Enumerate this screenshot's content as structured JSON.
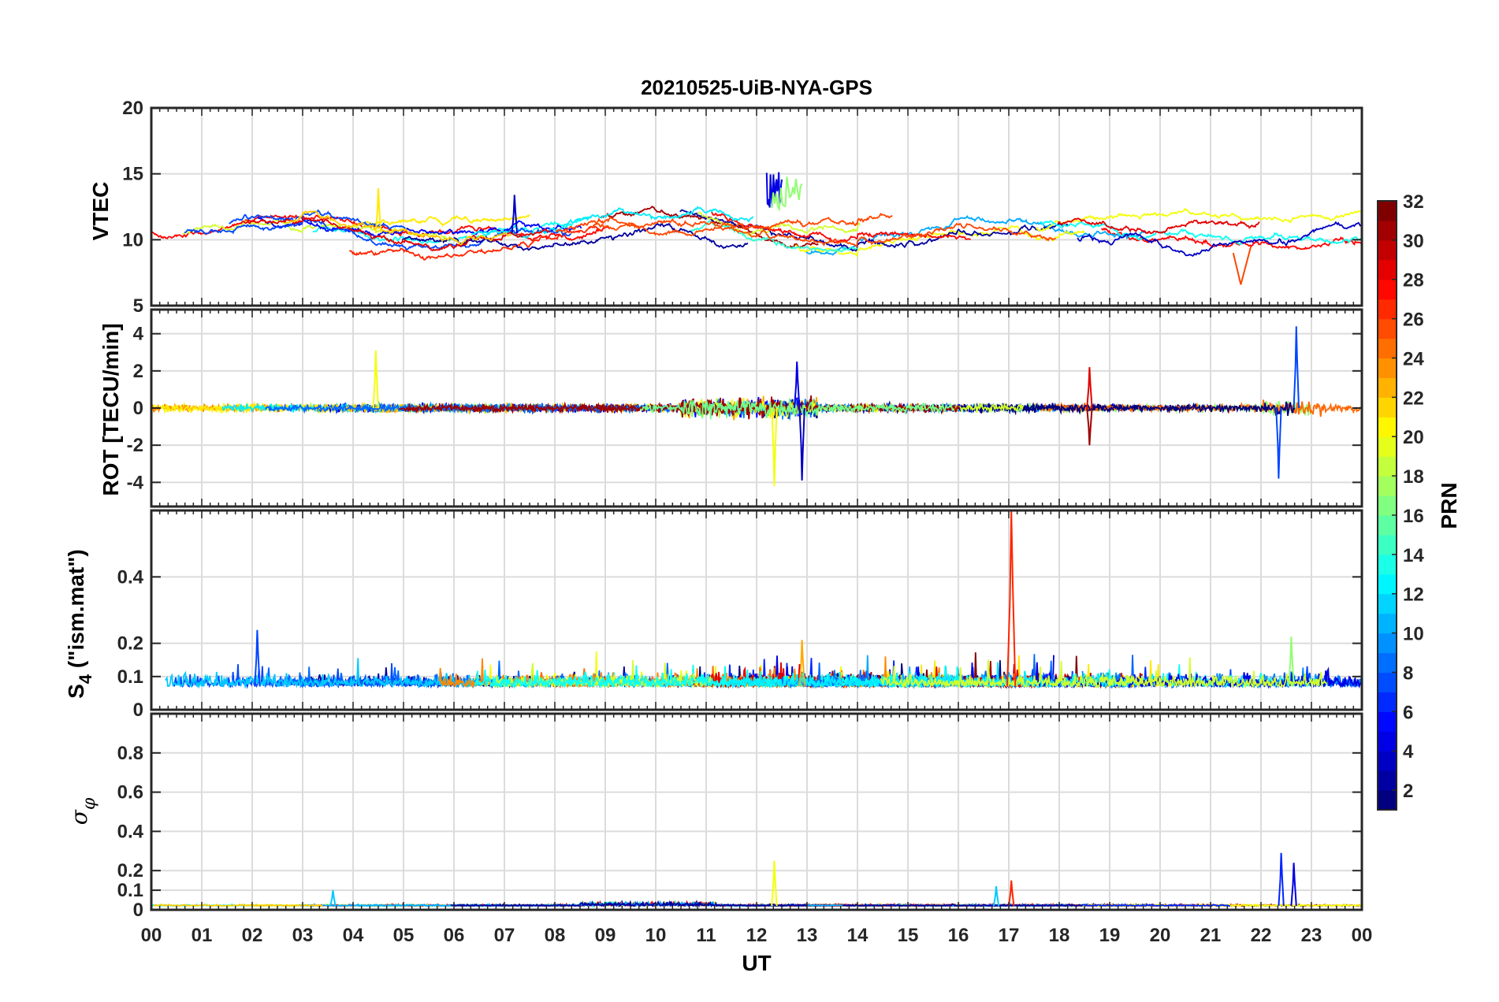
{
  "figure": {
    "title": "20210525-UiB-NYA-GPS",
    "xlabel": "UT",
    "x_ticks": [
      "00",
      "01",
      "02",
      "03",
      "04",
      "05",
      "06",
      "07",
      "08",
      "09",
      "10",
      "11",
      "12",
      "13",
      "14",
      "15",
      "16",
      "17",
      "18",
      "19",
      "20",
      "21",
      "22",
      "23",
      "00"
    ],
    "colorbar": {
      "label": "PRN",
      "colormap": "jet",
      "range": [
        1,
        32
      ],
      "ticks": [
        2,
        4,
        6,
        8,
        10,
        12,
        14,
        16,
        18,
        20,
        22,
        24,
        26,
        28,
        30,
        32
      ]
    },
    "grid_color": "#dcdcdc"
  },
  "chart_data": [
    {
      "type": "line",
      "id": "vtec",
      "ylabel": "VTEC",
      "ylim": [
        5,
        20
      ],
      "yticks": [
        5,
        10,
        15,
        20
      ],
      "x_unit": "hours UT",
      "series_note": "per-PRN traces, colored by PRN",
      "features": [
        {
          "prn": 4,
          "x_range": [
            12.2,
            12.5
          ],
          "peak": 15.2
        },
        {
          "prn": 17,
          "x_range": [
            12.3,
            12.9
          ],
          "peak": 14.9
        },
        {
          "prn": 21,
          "x": 4.5,
          "peak": 13.9
        },
        {
          "prn": 3,
          "x": 7.2,
          "peak": 13.4
        },
        {
          "prn": 26,
          "x": 21.6,
          "min": 6.6
        }
      ],
      "baseline": 10.5
    },
    {
      "type": "line",
      "id": "rot",
      "ylabel": "ROT [TECU/min]",
      "ylim": [
        -5.3,
        5.3
      ],
      "yticks": [
        -4,
        -2,
        0,
        2,
        4
      ],
      "features": [
        {
          "prn": 20,
          "x": 4.45,
          "peak": 3.1
        },
        {
          "prn": 20,
          "x": 12.35,
          "peak": -4.2
        },
        {
          "prn": 3,
          "x": 12.9,
          "peak": -3.9
        },
        {
          "prn": 4,
          "x": 12.8,
          "peak": 2.5
        },
        {
          "prn": 31,
          "x": 18.6,
          "peak": -2.0
        },
        {
          "prn": 29,
          "x": 18.6,
          "peak": 2.2
        },
        {
          "prn": 7,
          "x": 22.7,
          "peak": 4.4
        },
        {
          "prn": 7,
          "x": 22.35,
          "peak": -3.8
        }
      ]
    },
    {
      "type": "line",
      "id": "s4",
      "ylabel_main": "S",
      "ylabel_sub": "4",
      "ylabel_tail": " (\"ism.mat\")",
      "ylim": [
        0,
        0.6
      ],
      "yticks": [
        0,
        0.1,
        0.2,
        0.4
      ],
      "ytick_labels": [
        "0",
        "0.1",
        "0.2",
        "0.4"
      ],
      "features": [
        {
          "prn": 27,
          "x": 17.05,
          "peak": 0.6
        },
        {
          "prn": 7,
          "x": 2.1,
          "peak": 0.24
        },
        {
          "prn": 17,
          "x": 22.6,
          "peak": 0.22
        },
        {
          "prn": 23,
          "x": 12.9,
          "peak": 0.21
        }
      ],
      "baseline": 0.07
    },
    {
      "type": "line",
      "id": "sigma_phi",
      "ylabel_greek": "σ",
      "ylabel_sub": "φ",
      "ylim": [
        0,
        1
      ],
      "yticks": [
        0,
        0.1,
        0.2,
        0.4,
        0.6,
        0.8
      ],
      "ytick_labels": [
        "0",
        "0.1",
        "0.2",
        "0.4",
        "0.6",
        "0.8"
      ],
      "features": [
        {
          "prn": 6,
          "x": 22.4,
          "peak": 0.29
        },
        {
          "prn": 4,
          "x": 22.65,
          "peak": 0.24
        },
        {
          "prn": 20,
          "x": 12.35,
          "peak": 0.25
        },
        {
          "prn": 27,
          "x": 17.05,
          "peak": 0.15
        },
        {
          "prn": 11,
          "x": 16.75,
          "peak": 0.12
        },
        {
          "prn": 11,
          "x": 3.6,
          "peak": 0.1
        }
      ],
      "baseline": 0.02
    }
  ]
}
